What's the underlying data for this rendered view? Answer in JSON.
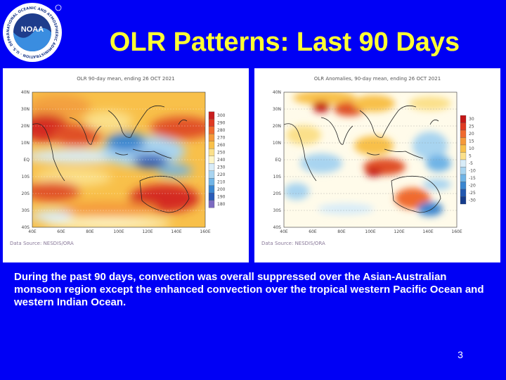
{
  "logo": {
    "name": "noaa-logo",
    "text": "NOAA",
    "ring_text": "NATIONAL OCEANIC AND ATMOSPHERIC ADMINISTRATION · U.S. DEPARTMENT OF COMMERCE"
  },
  "slide": {
    "title": "OLR Patterns: Last 90 Days",
    "caption": "During the past 90 days, convection was overall suppressed over the Asian-Australian monsoon region except the enhanced convection over the tropical western Pacific Ocean and western Indian Ocean.",
    "page_number": "3"
  },
  "panels": [
    {
      "header": "OLR 90-day mean, ending 26 OCT 2021",
      "source": "Data Source: NESDIS/ORA",
      "lat_labels": [
        "40N",
        "30N",
        "20N",
        "10N",
        "EQ",
        "10S",
        "20S",
        "30S",
        "40S"
      ],
      "lon_labels": [
        "40E",
        "60E",
        "80E",
        "100E",
        "120E",
        "140E",
        "160E"
      ],
      "colorbar": [
        "300",
        "290",
        "280",
        "270",
        "260",
        "250",
        "240",
        "230",
        "220",
        "210",
        "200",
        "190",
        "180"
      ],
      "colorbar_colors": [
        "#c81e1e",
        "#e03a22",
        "#f06a2e",
        "#f59a3a",
        "#f8c04a",
        "#fbe08a",
        "#fdf5c8",
        "#d8ecf8",
        "#a8d4f0",
        "#70b4e6",
        "#3a86d0",
        "#2a5bb8",
        "#7c6ac0"
      ]
    },
    {
      "header": "OLR Anomalies, 90-day mean, ending 26 OCT 2021",
      "source": "Data Source: NESDIS/ORA",
      "lat_labels": [
        "40N",
        "30N",
        "20N",
        "10N",
        "EQ",
        "10S",
        "20S",
        "30S",
        "40S"
      ],
      "lon_labels": [
        "40E",
        "60E",
        "80E",
        "100E",
        "120E",
        "140E",
        "160E"
      ],
      "colorbar": [
        "30",
        "25",
        "20",
        "15",
        "10",
        "5",
        "-5",
        "-10",
        "-15",
        "-20",
        "-25",
        "-30"
      ],
      "colorbar_colors": [
        "#c41818",
        "#e03a22",
        "#f06a2e",
        "#f59a3a",
        "#f8c04a",
        "#fbe08a",
        "#d8ecf8",
        "#a8d4f0",
        "#70b4e6",
        "#3a86d0",
        "#2258b0",
        "#163c8c"
      ]
    }
  ]
}
